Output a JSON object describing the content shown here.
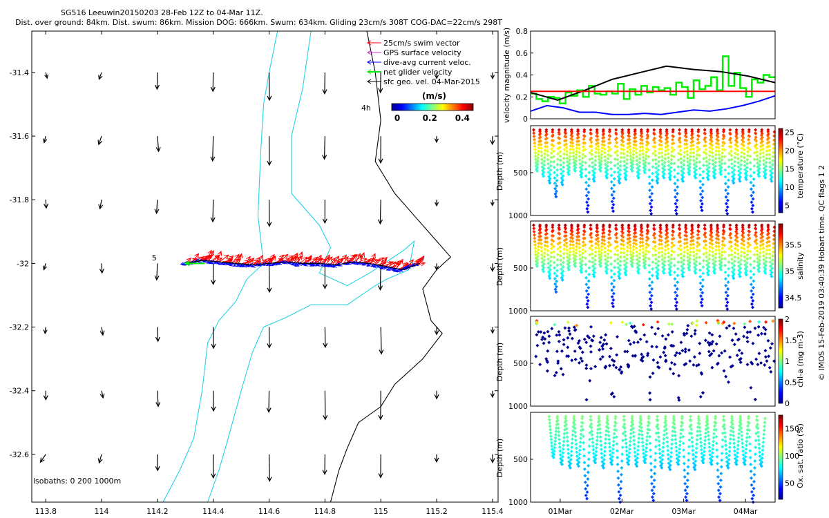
{
  "title": {
    "line1": "SG516 Leeuwin20150203 28-Feb 12Z to 04-Mar 11Z.",
    "line2": "Dist. over ground: 84km. Dist. swum: 86km. Mission DOG: 666km. Swum: 634km. Gliding 23cm/s 308T COG-DAC=22cm/s 298T"
  },
  "side_note": "© IMOS 15-Feb-2019 03:40:39 Hobart time. QC flags 1  2",
  "colors": {
    "coast": "#000000",
    "isobath": "#22d3e6",
    "swim": "#ff0000",
    "gps": "#cc33cc",
    "dac": "#0000ff",
    "net": "#00ee00",
    "sfc": "#000000"
  },
  "chart_data": [
    {
      "type": "scatter",
      "id": "map",
      "xlim": [
        113.75,
        115.42
      ],
      "ylim": [
        -32.75,
        -31.27
      ],
      "xticks": [
        "113.8",
        "114",
        "114.2",
        "114.4",
        "114.6",
        "114.8",
        "115",
        "115.2",
        "115.4"
      ],
      "xtick_values": [
        113.8,
        114.0,
        114.2,
        114.4,
        114.6,
        114.8,
        115.0,
        115.2,
        115.4
      ],
      "yticks": [
        "-31.4",
        "-31.6",
        "-31.8",
        "-32",
        "-32.2",
        "-32.4",
        "-32.6"
      ],
      "ytick_values": [
        -31.4,
        -31.6,
        -31.8,
        -32.0,
        -32.2,
        -32.4,
        -32.6
      ],
      "legend": [
        {
          "label": "25cm/s swim vector",
          "color": "#ff0000"
        },
        {
          "label": "GPS surface velocity",
          "color": "#cc33cc"
        },
        {
          "label": "dive-avg current veloc.",
          "color": "#0000ff"
        },
        {
          "label": "net glider velocity",
          "color": "#00ee00"
        },
        {
          "label": "sfc geo. vel. 04-Mar-2015",
          "color": "#000000"
        }
      ],
      "colorbar": {
        "title": "(m/s)",
        "ticks": [
          "0",
          "0.2",
          "0.4"
        ],
        "range": [
          0,
          0.5
        ]
      },
      "isobath_label": "isobaths: 0   200  1000m",
      "annotations": {
        "start": "5",
        "end": "4h"
      },
      "track": {
        "lon_start": 114.3,
        "lon_end": 115.14,
        "lat": [
          -32.0,
          -31.99,
          -31.995,
          -32.0,
          -32.005,
          -32.0,
          -31.995,
          -32.0,
          -32.0,
          -32.005,
          -31.995,
          -32.0,
          -32.01,
          -32.02,
          -32.0
        ]
      },
      "isobath_200": [
        [
          114.75,
          -31.27
        ],
        [
          114.72,
          -31.45
        ],
        [
          114.68,
          -31.6
        ],
        [
          114.68,
          -31.78
        ],
        [
          114.78,
          -31.88
        ],
        [
          114.82,
          -31.95
        ],
        [
          114.78,
          -32.03
        ],
        [
          114.88,
          -32.07
        ],
        [
          114.96,
          -32.03
        ],
        [
          115.08,
          -31.96
        ],
        [
          115.12,
          -31.93
        ],
        [
          115.1,
          -32.02
        ],
        [
          115.02,
          -32.05
        ],
        [
          114.98,
          -32.07
        ],
        [
          114.88,
          -32.13
        ],
        [
          114.75,
          -32.13
        ],
        [
          114.66,
          -32.17
        ],
        [
          114.58,
          -32.2
        ],
        [
          114.54,
          -32.28
        ],
        [
          114.5,
          -32.4
        ],
        [
          114.45,
          -32.56
        ],
        [
          114.42,
          -32.65
        ],
        [
          114.38,
          -32.75
        ]
      ],
      "isobath_1000": [
        [
          114.63,
          -31.27
        ],
        [
          114.6,
          -31.4
        ],
        [
          114.58,
          -31.5
        ],
        [
          114.57,
          -31.65
        ],
        [
          114.56,
          -31.85
        ],
        [
          114.58,
          -32.0
        ],
        [
          114.52,
          -32.05
        ],
        [
          114.48,
          -32.12
        ],
        [
          114.42,
          -32.18
        ],
        [
          114.38,
          -32.25
        ],
        [
          114.36,
          -32.4
        ],
        [
          114.33,
          -32.55
        ],
        [
          114.28,
          -32.65
        ],
        [
          114.22,
          -32.75
        ]
      ],
      "coast": [
        [
          114.95,
          -31.27
        ],
        [
          114.98,
          -31.4
        ],
        [
          115.0,
          -31.55
        ],
        [
          114.98,
          -31.68
        ],
        [
          115.05,
          -31.78
        ],
        [
          115.12,
          -31.85
        ],
        [
          115.2,
          -31.93
        ],
        [
          115.25,
          -31.98
        ],
        [
          115.2,
          -32.02
        ],
        [
          115.15,
          -32.08
        ],
        [
          115.18,
          -32.18
        ],
        [
          115.22,
          -32.22
        ],
        [
          115.15,
          -32.3
        ],
        [
          115.05,
          -32.38
        ],
        [
          115.0,
          -32.45
        ],
        [
          114.92,
          -32.5
        ],
        [
          114.88,
          -32.58
        ],
        [
          114.85,
          -32.65
        ],
        [
          114.82,
          -32.75
        ]
      ]
    },
    {
      "type": "line",
      "id": "velocity",
      "ylabel": "velocity magnitude (m/s)",
      "ylim": [
        0,
        0.8
      ],
      "yticks": [
        "0",
        "0.2",
        "0.4",
        "0.6",
        "0.8"
      ],
      "ytick_values": [
        0,
        0.2,
        0.4,
        0.6,
        0.8
      ],
      "series": [
        {
          "name": "net glider velocity",
          "color": "#00ee00",
          "values": [
            0.23,
            0.18,
            0.16,
            0.2,
            0.19,
            0.14,
            0.24,
            0.21,
            0.26,
            0.2,
            0.3,
            0.23,
            0.22,
            0.25,
            0.23,
            0.32,
            0.18,
            0.27,
            0.22,
            0.3,
            0.24,
            0.29,
            0.26,
            0.28,
            0.22,
            0.33,
            0.29,
            0.19,
            0.35,
            0.27,
            0.3,
            0.38,
            0.26,
            0.57,
            0.3,
            0.42,
            0.28,
            0.2,
            0.36,
            0.33,
            0.4,
            0.38
          ]
        },
        {
          "name": "sfc geo. vel.",
          "color": "#000000",
          "values": [
            0.24,
            0.17,
            0.26,
            0.36,
            0.42,
            0.48,
            0.45,
            0.43,
            0.39,
            0.33
          ]
        },
        {
          "name": "dive-avg current",
          "color": "#0000ff",
          "values": [
            0.07,
            0.12,
            0.1,
            0.06,
            0.06,
            0.04,
            0.04,
            0.05,
            0.04,
            0.06,
            0.08,
            0.07,
            0.09,
            0.12,
            0.16,
            0.21
          ]
        },
        {
          "name": "mean swim",
          "color": "#ff0000",
          "values": [
            0.25,
            0.25
          ]
        }
      ]
    },
    {
      "type": "scatter",
      "id": "temperature",
      "ylabel": "Depth (m)",
      "clabel": "temperature (°C)",
      "ylim": [
        1000,
        0
      ],
      "yticks": [
        "500",
        "1000"
      ],
      "ytick_values": [
        500,
        1000
      ],
      "cticks": [
        "5",
        "10",
        "15",
        "20",
        "25"
      ],
      "ctick_values": [
        5,
        10,
        15,
        20,
        25
      ],
      "crange": [
        3,
        26
      ],
      "dive_depths": [
        480,
        540,
        620,
        780,
        640,
        520,
        480,
        550,
        960,
        600,
        480,
        560,
        950,
        620,
        580,
        480,
        560,
        500,
        980,
        620,
        560,
        580,
        980,
        600,
        520,
        560,
        940,
        580,
        560,
        520,
        980,
        620,
        600,
        580,
        960,
        540,
        560,
        600
      ]
    },
    {
      "type": "scatter",
      "id": "salinity",
      "ylabel": "Depth (m)",
      "clabel": "salinity",
      "ylim": [
        1000,
        0
      ],
      "yticks": [
        "500",
        "1000"
      ],
      "ytick_values": [
        500,
        1000
      ],
      "cticks": [
        "34.5",
        "35",
        "35.5"
      ],
      "ctick_values": [
        34.5,
        35.0,
        35.5
      ],
      "crange": [
        34.3,
        35.9
      ],
      "dive_depths": [
        480,
        540,
        620,
        780,
        640,
        520,
        480,
        550,
        960,
        600,
        480,
        560,
        950,
        620,
        580,
        480,
        560,
        500,
        980,
        620,
        560,
        580,
        980,
        600,
        520,
        560,
        940,
        580,
        560,
        520,
        980,
        620,
        600,
        580,
        960,
        540,
        560,
        600
      ]
    },
    {
      "type": "scatter",
      "id": "chla",
      "ylabel": "Depth (m)",
      "clabel": "chl-a (mg m-3)",
      "ylim": [
        1000,
        0
      ],
      "yticks": [
        "500",
        "1000"
      ],
      "ytick_values": [
        500,
        1000
      ],
      "cticks": [
        "0",
        "0.5",
        "1",
        "1.5",
        "2"
      ],
      "ctick_values": [
        0,
        0.5,
        1,
        1.5,
        2
      ],
      "crange": [
        0,
        2
      ],
      "dive_depths": [
        480,
        540,
        620,
        780,
        640,
        520,
        480,
        550,
        960,
        600,
        480,
        560,
        950,
        620,
        580,
        480,
        560,
        500,
        980,
        620,
        560,
        580,
        980,
        600,
        520,
        560,
        940,
        580,
        560,
        520,
        980,
        620,
        600,
        580,
        960,
        540,
        560,
        600
      ]
    },
    {
      "type": "scatter",
      "id": "oxygen",
      "ylabel": "Depth (m)",
      "clabel": "Ox. sat. ratio (%)",
      "ylim": [
        1000,
        0
      ],
      "yticks": [
        "500",
        "1000"
      ],
      "ytick_values": [
        500,
        1000
      ],
      "cticks": [
        "50",
        "100",
        "150"
      ],
      "ctick_values": [
        50,
        100,
        150
      ],
      "crange": [
        20,
        175
      ],
      "xticks": [
        "01Mar",
        "02Mar",
        "03Mar",
        "04Mar"
      ],
      "xtick_values": [
        0.48,
        1.48,
        2.48,
        3.48
      ],
      "xrange": [
        0,
        3.96
      ],
      "dive_depths": [
        480,
        560,
        600,
        580,
        960,
        540,
        600,
        560,
        1000,
        560,
        580,
        540,
        980,
        600,
        620,
        560,
        980,
        620,
        540,
        560,
        980,
        600,
        560,
        560,
        1000,
        580
      ]
    }
  ]
}
